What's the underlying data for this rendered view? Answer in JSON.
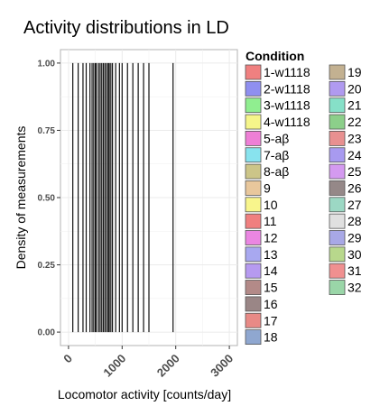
{
  "chart_data": {
    "type": "histogram",
    "title": "Activity distributions in LD",
    "xlabel": "Locomotor activity [counts/day]",
    "ylabel": "Density of measurements",
    "xlim": [
      -150,
      3150
    ],
    "ylim": [
      -0.05,
      1.05
    ],
    "x_ticks": [
      0,
      1000,
      2000,
      3000
    ],
    "x_tick_labels": [
      "0",
      "1000",
      "2000",
      "3000"
    ],
    "y_ticks": [
      0,
      0.25,
      0.5,
      0.75,
      1.0
    ],
    "y_tick_labels": [
      "0.00",
      "0.25",
      "0.50",
      "0.75",
      "1.00"
    ],
    "grid": true,
    "bar_height": 1.0,
    "line_values": [
      80,
      180,
      270,
      330,
      400,
      440,
      470,
      500,
      520,
      560,
      590,
      620,
      650,
      680,
      710,
      740,
      760,
      790,
      820,
      880,
      950,
      1000,
      1100,
      1200,
      1300,
      1400,
      1500,
      1950
    ],
    "legend": {
      "title": "Condition",
      "placement": "right",
      "entries": [
        {
          "label": "1-w1118",
          "color": "#f08080"
        },
        {
          "label": "2-w1118",
          "color": "#8f8ff0"
        },
        {
          "label": "3-w1118",
          "color": "#90ee90"
        },
        {
          "label": "4-w1118",
          "color": "#f5f58a"
        },
        {
          "label": "5-aβ",
          "color": "#ee7fd6"
        },
        {
          "label": "7-aβ",
          "color": "#88e3ee"
        },
        {
          "label": "8-aβ",
          "color": "#ccc588"
        },
        {
          "label": "9",
          "color": "#e8c79c"
        },
        {
          "label": "10",
          "color": "#f8f58c"
        },
        {
          "label": "11",
          "color": "#f07f7f"
        },
        {
          "label": "12",
          "color": "#ea86e2"
        },
        {
          "label": "13",
          "color": "#a8a8f0"
        },
        {
          "label": "14",
          "color": "#b69af0"
        },
        {
          "label": "15",
          "color": "#b38a88"
        },
        {
          "label": "16",
          "color": "#9a8686"
        },
        {
          "label": "17",
          "color": "#e88a86"
        },
        {
          "label": "18",
          "color": "#8fa7d0"
        },
        {
          "label": "19",
          "color": "#c3b191"
        },
        {
          "label": "20",
          "color": "#b09af0"
        },
        {
          "label": "21",
          "color": "#86e0c8"
        },
        {
          "label": "22",
          "color": "#8ccf8a"
        },
        {
          "label": "23",
          "color": "#e89090"
        },
        {
          "label": "24",
          "color": "#a89af0"
        },
        {
          "label": "25",
          "color": "#d49af0"
        },
        {
          "label": "26",
          "color": "#958888"
        },
        {
          "label": "27",
          "color": "#9cd8c4"
        },
        {
          "label": "28",
          "color": "#e0e0e0"
        },
        {
          "label": "29",
          "color": "#a8a8e6"
        },
        {
          "label": "30",
          "color": "#b8d88c"
        },
        {
          "label": "31",
          "color": "#f09090"
        },
        {
          "label": "32",
          "color": "#9ad6a8"
        }
      ]
    }
  }
}
